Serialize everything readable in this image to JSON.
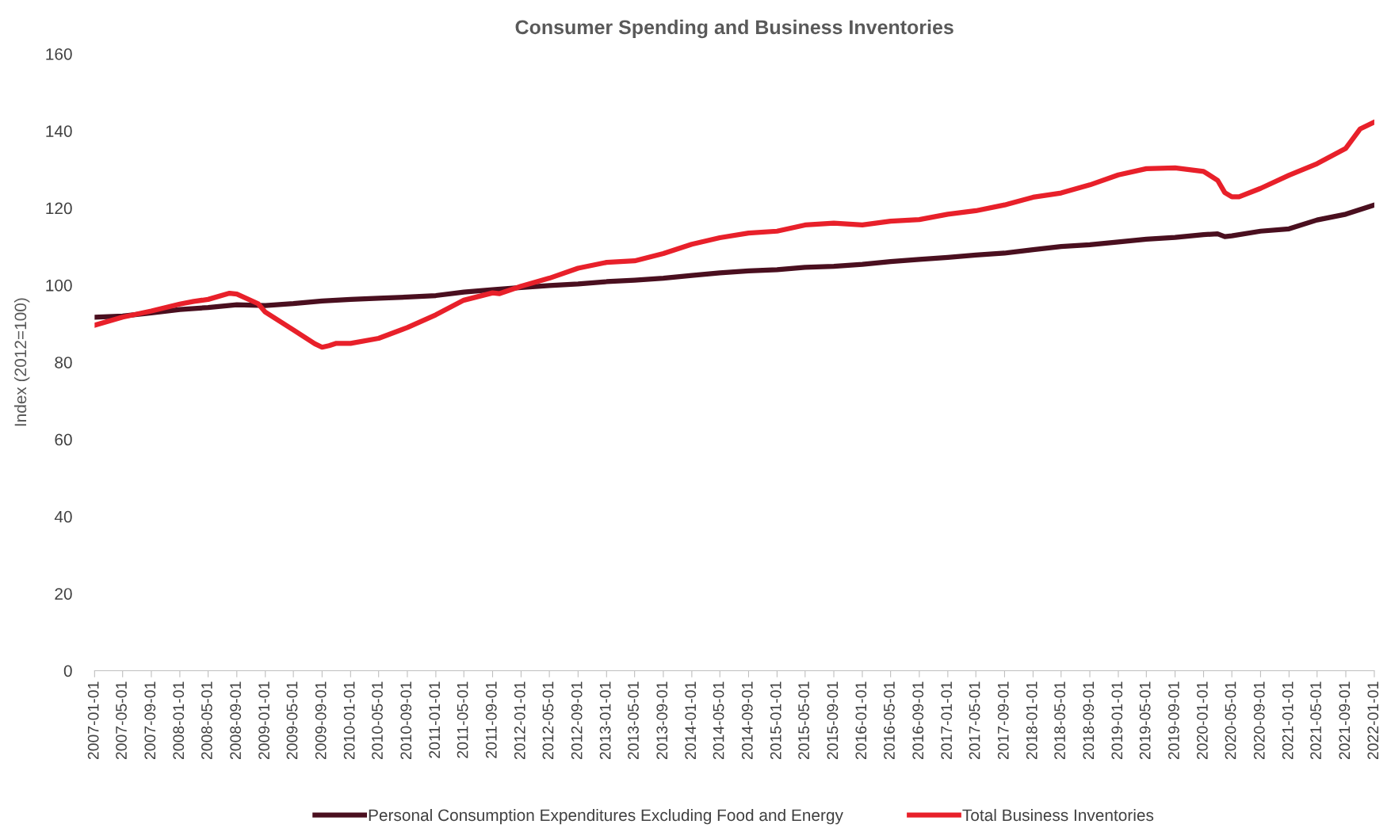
{
  "chart_data": {
    "type": "line",
    "title": "Consumer Spending and Business Inventories",
    "ylabel": "Index (2012=100)",
    "ylim": [
      0,
      160
    ],
    "yticks": [
      0,
      20,
      40,
      60,
      80,
      100,
      120,
      140,
      160
    ],
    "xlim": [
      "2007-01-01",
      "2022-01-01"
    ],
    "xticks": [
      "2007-01-01",
      "2007-05-01",
      "2007-09-01",
      "2008-01-01",
      "2008-05-01",
      "2008-09-01",
      "2009-01-01",
      "2009-05-01",
      "2009-09-01",
      "2010-01-01",
      "2010-05-01",
      "2010-09-01",
      "2011-01-01",
      "2011-05-01",
      "2011-09-01",
      "2012-01-01",
      "2012-05-01",
      "2012-09-01",
      "2013-01-01",
      "2013-05-01",
      "2013-09-01",
      "2014-01-01",
      "2014-05-01",
      "2014-09-01",
      "2015-01-01",
      "2015-05-01",
      "2015-09-01",
      "2016-01-01",
      "2016-05-01",
      "2016-09-01",
      "2017-01-01",
      "2017-05-01",
      "2017-09-01",
      "2018-01-01",
      "2018-05-01",
      "2018-09-01",
      "2019-01-01",
      "2019-05-01",
      "2019-09-01",
      "2020-01-01",
      "2020-05-01",
      "2020-09-01",
      "2021-01-01",
      "2021-05-01",
      "2021-09-01",
      "2022-01-01"
    ],
    "grid": false,
    "legend": "bottom",
    "marker": "none",
    "line_style": "solid",
    "series": [
      {
        "name": "Personal Consumption Expenditures Excluding Food and Energy",
        "color": "#4a0f1f",
        "x": [
          "2007-01-01",
          "2007-05-01",
          "2007-09-01",
          "2008-01-01",
          "2008-05-01",
          "2008-09-01",
          "2009-01-01",
          "2009-05-01",
          "2009-09-01",
          "2010-01-01",
          "2010-05-01",
          "2010-09-01",
          "2011-01-01",
          "2011-05-01",
          "2011-09-01",
          "2012-01-01",
          "2012-05-01",
          "2012-09-01",
          "2013-01-01",
          "2013-05-01",
          "2013-09-01",
          "2014-01-01",
          "2014-05-01",
          "2014-09-01",
          "2015-01-01",
          "2015-05-01",
          "2015-09-01",
          "2016-01-01",
          "2016-05-01",
          "2016-09-01",
          "2017-01-01",
          "2017-05-01",
          "2017-09-01",
          "2018-01-01",
          "2018-05-01",
          "2018-09-01",
          "2019-01-01",
          "2019-05-01",
          "2019-09-01",
          "2020-01-01",
          "2020-03-01",
          "2020-04-01",
          "2020-05-01",
          "2020-09-01",
          "2021-01-01",
          "2021-05-01",
          "2021-09-01",
          "2022-01-01"
        ],
        "values": [
          91.7,
          92.0,
          92.8,
          93.7,
          94.2,
          94.9,
          94.7,
          95.2,
          95.9,
          96.3,
          96.6,
          96.9,
          97.3,
          98.2,
          98.8,
          99.4,
          99.9,
          100.3,
          100.9,
          101.3,
          101.8,
          102.5,
          103.2,
          103.7,
          104.0,
          104.6,
          104.9,
          105.4,
          106.1,
          106.7,
          107.2,
          107.8,
          108.3,
          109.2,
          110.0,
          110.5,
          111.2,
          111.9,
          112.4,
          113.1,
          113.3,
          112.6,
          112.8,
          114.0,
          114.6,
          116.9,
          118.4,
          120.8
        ]
      },
      {
        "name": "Total Business Inventories",
        "color": "#e8202a",
        "x": [
          "2007-01-01",
          "2007-05-01",
          "2007-09-01",
          "2008-01-01",
          "2008-03-01",
          "2008-05-01",
          "2008-08-01",
          "2008-09-01",
          "2008-12-01",
          "2009-01-01",
          "2009-05-01",
          "2009-08-01",
          "2009-09-01",
          "2009-10-01",
          "2009-11-01",
          "2010-01-01",
          "2010-05-01",
          "2010-09-01",
          "2011-01-01",
          "2011-05-01",
          "2011-09-01",
          "2011-10-01",
          "2012-01-01",
          "2012-05-01",
          "2012-09-01",
          "2013-01-01",
          "2013-05-01",
          "2013-09-01",
          "2014-01-01",
          "2014-05-01",
          "2014-09-01",
          "2015-01-01",
          "2015-05-01",
          "2015-09-01",
          "2016-01-01",
          "2016-05-01",
          "2016-09-01",
          "2017-01-01",
          "2017-05-01",
          "2017-09-01",
          "2018-01-01",
          "2018-05-01",
          "2018-09-01",
          "2019-01-01",
          "2019-05-01",
          "2019-09-01",
          "2020-01-01",
          "2020-03-01",
          "2020-04-01",
          "2020-05-01",
          "2020-06-01",
          "2020-09-01",
          "2021-01-01",
          "2021-05-01",
          "2021-09-01",
          "2021-11-01",
          "2022-01-01"
        ],
        "values": [
          89.6,
          91.7,
          93.3,
          95.1,
          95.8,
          96.3,
          97.9,
          97.7,
          95.2,
          93.0,
          88.4,
          84.8,
          83.9,
          84.3,
          84.9,
          84.9,
          86.2,
          89.0,
          92.3,
          96.1,
          98.0,
          97.8,
          99.7,
          101.8,
          104.4,
          105.9,
          106.3,
          108.2,
          110.6,
          112.3,
          113.5,
          114.0,
          115.6,
          116.1,
          115.6,
          116.6,
          117.0,
          118.4,
          119.3,
          120.8,
          122.8,
          123.9,
          126.0,
          128.6,
          130.2,
          130.4,
          129.5,
          127.2,
          124.0,
          122.9,
          122.9,
          125.1,
          128.5,
          131.5,
          135.5,
          140.5,
          142.3
        ]
      }
    ]
  }
}
